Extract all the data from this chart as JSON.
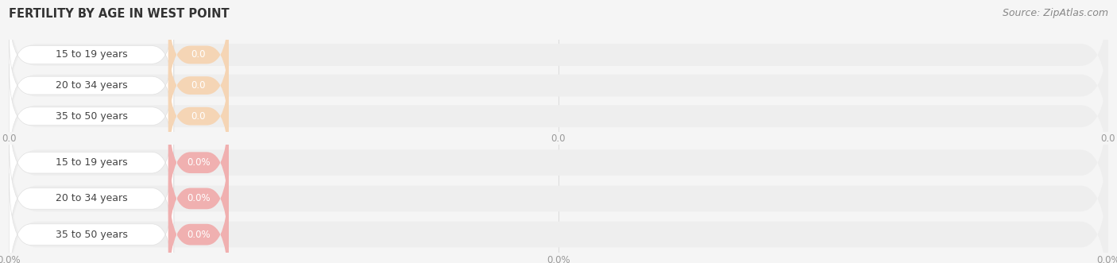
{
  "title": "FERTILITY BY AGE IN WEST POINT",
  "source": "Source: ZipAtlas.com",
  "top_group": {
    "labels": [
      "15 to 19 years",
      "20 to 34 years",
      "35 to 50 years"
    ],
    "values": [
      0.0,
      0.0,
      0.0
    ],
    "bar_bg_color": "#eeeeee",
    "circle_color": "#f0c8a0",
    "pill_bg_color": "#f5d5b5",
    "value_label_color": "#ffffff",
    "x_tick_labels": [
      "0.0",
      "0.0",
      "0.0"
    ]
  },
  "bottom_group": {
    "labels": [
      "15 to 19 years",
      "20 to 34 years",
      "35 to 50 years"
    ],
    "values": [
      0.0,
      0.0,
      0.0
    ],
    "bar_bg_color": "#eeeeee",
    "circle_color": "#e8a0a0",
    "pill_bg_color": "#f0b0b0",
    "value_label_color": "#ffffff",
    "x_tick_labels": [
      "0.0%",
      "0.0%",
      "0.0%"
    ]
  },
  "fig_bg_color": "#f5f5f5",
  "title_color": "#333333",
  "source_color": "#888888",
  "tick_color": "#999999",
  "grid_color": "#dddddd",
  "label_color": "#444444",
  "title_fontsize": 10.5,
  "source_fontsize": 9,
  "label_fontsize": 9,
  "tick_fontsize": 8.5
}
